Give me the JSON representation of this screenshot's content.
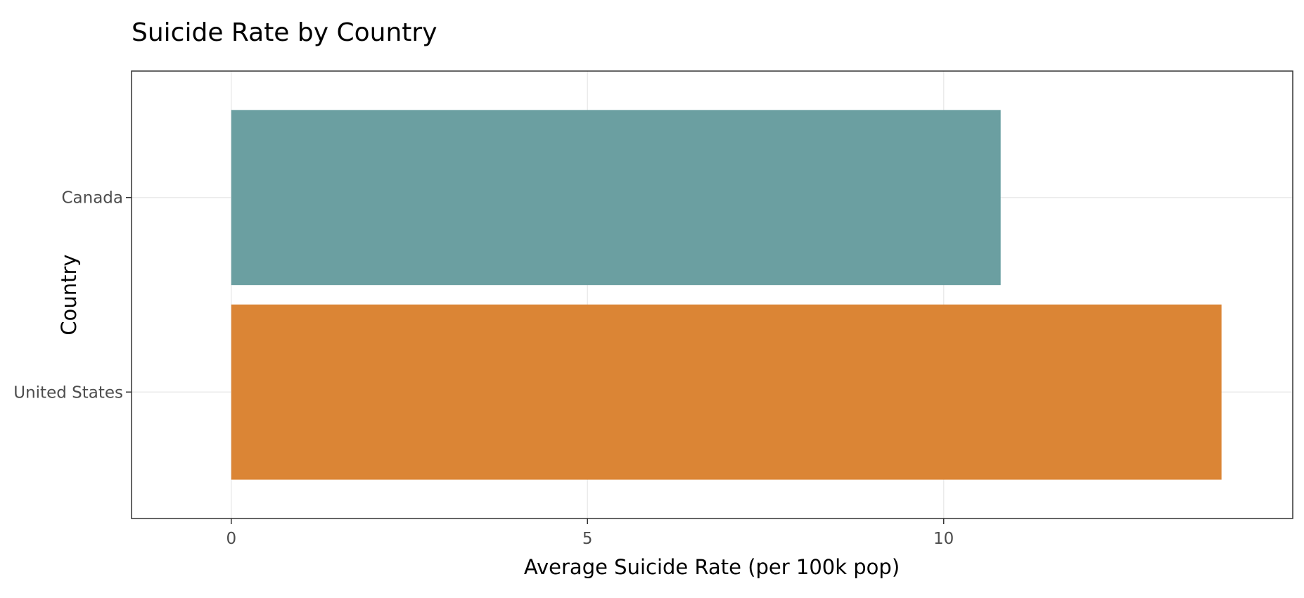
{
  "chart_data": {
    "type": "bar",
    "orientation": "horizontal",
    "title": "Suicide Rate by Country",
    "xlabel": "Average Suicide Rate (per 100k pop)",
    "ylabel": "Country",
    "categories": [
      "Canada",
      "United States"
    ],
    "values": [
      10.8,
      13.9
    ],
    "colors": [
      "#6b9fa1",
      "#db8535"
    ],
    "xlim": [
      -1.4,
      14.9
    ],
    "x_ticks": [
      0,
      5,
      10
    ],
    "x_tick_labels": [
      "0",
      "5",
      "10"
    ],
    "grid": true,
    "legend": "none"
  }
}
